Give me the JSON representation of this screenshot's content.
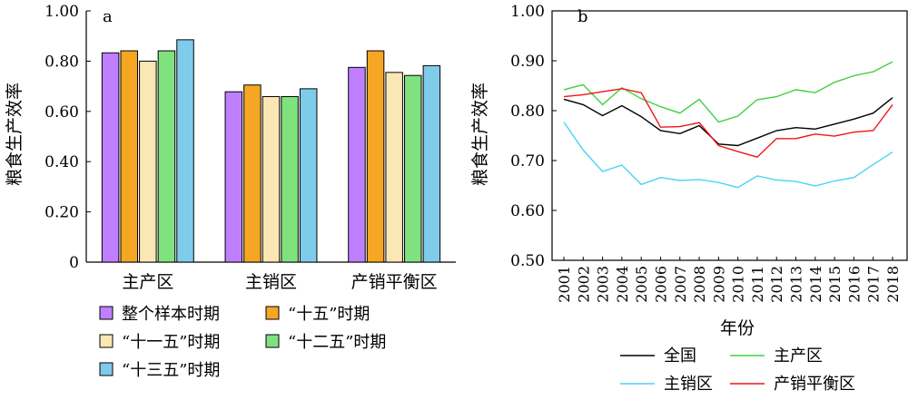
{
  "figure": {
    "left_panel": {
      "panel_label": "a",
      "ylabel": "粮食生产效率",
      "legend_labels": [
        "整个样本时期",
        "“十五”时期",
        "“十一五”时期",
        "“十二五”时期",
        "“十三五”时期"
      ]
    },
    "right_panel": {
      "panel_label": "b",
      "ylabel": "粮食生产效率",
      "xlabel": "年份",
      "legend_labels": [
        "全国",
        "主产区",
        "主销区",
        "产销平衡区"
      ]
    }
  },
  "chart_data": [
    {
      "type": "bar",
      "panel": "a",
      "ylabel": "粮食生产效率",
      "ylim": [
        0,
        1.0
      ],
      "yticks": [
        0,
        0.2,
        0.4,
        0.6,
        0.8,
        1.0
      ],
      "ytick_labels": [
        "0",
        "0.20",
        "0.40",
        "0.60",
        "0.80",
        "1.00"
      ],
      "categories": [
        "主产区",
        "主销区",
        "产销平衡区"
      ],
      "series": [
        {
          "name": "整个样本时期",
          "color": "#BF7FFF",
          "values": [
            0.833,
            0.678,
            0.775
          ]
        },
        {
          "name": "“十五”时期",
          "color": "#F5A623",
          "values": [
            0.841,
            0.705,
            0.841
          ]
        },
        {
          "name": "“十一五”时期",
          "color": "#FBE7B4",
          "values": [
            0.8,
            0.659,
            0.755
          ]
        },
        {
          "name": "“十二五”时期",
          "color": "#7FE27F",
          "values": [
            0.841,
            0.659,
            0.743
          ]
        },
        {
          "name": "“十三五”时期",
          "color": "#7FCCEA",
          "values": [
            0.885,
            0.69,
            0.782
          ]
        }
      ],
      "grid": false,
      "legend_position": "bottom"
    },
    {
      "type": "line",
      "panel": "b",
      "ylabel": "粮食生产效率",
      "xlabel": "年份",
      "ylim": [
        0.5,
        1.0
      ],
      "yticks": [
        0.5,
        0.6,
        0.7,
        0.8,
        0.9,
        1.0
      ],
      "ytick_labels": [
        "0.50",
        "0.60",
        "0.70",
        "0.80",
        "0.90",
        "1.00"
      ],
      "x": [
        "2001",
        "2002",
        "2003",
        "2004",
        "2005",
        "2006",
        "2007",
        "2008",
        "2009",
        "2010",
        "2011",
        "2012",
        "2013",
        "2014",
        "2015",
        "2016",
        "2017",
        "2018"
      ],
      "series": [
        {
          "name": "全国",
          "color": "#000000",
          "values": [
            0.823,
            0.812,
            0.79,
            0.81,
            0.788,
            0.76,
            0.754,
            0.77,
            0.733,
            0.73,
            0.745,
            0.76,
            0.766,
            0.763,
            0.773,
            0.783,
            0.795,
            0.826
          ]
        },
        {
          "name": "主产区",
          "color": "#3FD13F",
          "values": [
            0.842,
            0.852,
            0.812,
            0.846,
            0.824,
            0.808,
            0.795,
            0.823,
            0.777,
            0.789,
            0.822,
            0.828,
            0.842,
            0.836,
            0.857,
            0.87,
            0.878,
            0.898
          ]
        },
        {
          "name": "主销区",
          "color": "#49D4F4",
          "values": [
            0.777,
            0.721,
            0.678,
            0.691,
            0.652,
            0.666,
            0.66,
            0.662,
            0.656,
            0.646,
            0.669,
            0.661,
            0.658,
            0.649,
            0.659,
            0.666,
            0.692,
            0.717
          ]
        },
        {
          "name": "产销平衡区",
          "color": "#F01515",
          "values": [
            0.828,
            0.832,
            0.838,
            0.844,
            0.836,
            0.767,
            0.768,
            0.776,
            0.73,
            0.718,
            0.707,
            0.744,
            0.744,
            0.753,
            0.749,
            0.757,
            0.76,
            0.812
          ]
        }
      ],
      "grid": false,
      "legend_position": "bottom"
    }
  ]
}
